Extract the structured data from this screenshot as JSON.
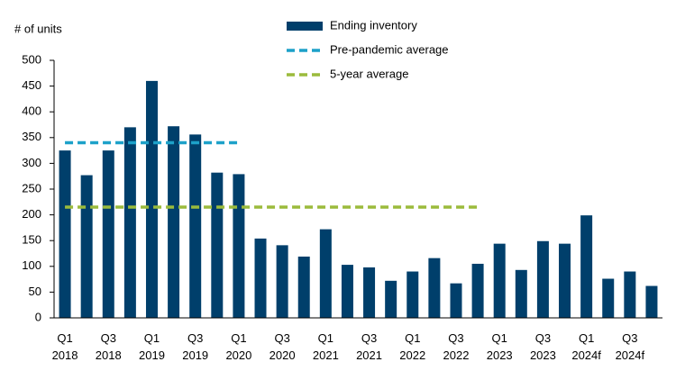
{
  "chart_data": {
    "type": "bar",
    "y_axis_label": "# of units",
    "categories": [
      [
        "Q1",
        "2018"
      ],
      null,
      [
        "Q3",
        "2018"
      ],
      null,
      [
        "Q1",
        "2019"
      ],
      null,
      [
        "Q3",
        "2019"
      ],
      null,
      [
        "Q1",
        "2020"
      ],
      null,
      [
        "Q3",
        "2020"
      ],
      null,
      [
        "Q1",
        "2021"
      ],
      null,
      [
        "Q3",
        "2021"
      ],
      null,
      [
        "Q1",
        "2022"
      ],
      null,
      [
        "Q3",
        "2022"
      ],
      null,
      [
        "Q1",
        "2023"
      ],
      null,
      [
        "Q3",
        "2023"
      ],
      null,
      [
        "Q1",
        "2024f"
      ],
      null,
      [
        "Q3",
        "2024f"
      ],
      null
    ],
    "series": [
      {
        "name": "Ending inventory",
        "type": "bar",
        "color": "#003f6b",
        "values": [
          325,
          277,
          325,
          370,
          460,
          372,
          356,
          282,
          279,
          154,
          141,
          119,
          172,
          103,
          98,
          72,
          90,
          116,
          67,
          105,
          144,
          93,
          149,
          144,
          199,
          76,
          90,
          62
        ]
      },
      {
        "name": "Pre-pandemic average",
        "type": "line",
        "style": "dashed",
        "color": "#1da1c9",
        "values": [
          340,
          340,
          340,
          340,
          340,
          340,
          340,
          340,
          340,
          null,
          null,
          null,
          null,
          null,
          null,
          null,
          null,
          null,
          null,
          null,
          null,
          null,
          null,
          null,
          null,
          null,
          null,
          null
        ]
      },
      {
        "name": "5-year average",
        "type": "line",
        "style": "dashed",
        "color": "#9bbb3c",
        "values": [
          215,
          215,
          215,
          215,
          215,
          215,
          215,
          215,
          215,
          215,
          215,
          215,
          215,
          215,
          215,
          215,
          215,
          215,
          215,
          215,
          null,
          null,
          null,
          null,
          null,
          null,
          null,
          null
        ]
      }
    ],
    "ylim": [
      0,
      500
    ],
    "yticks": [
      0,
      50,
      100,
      150,
      200,
      250,
      300,
      350,
      400,
      450,
      500
    ],
    "grid": false
  }
}
